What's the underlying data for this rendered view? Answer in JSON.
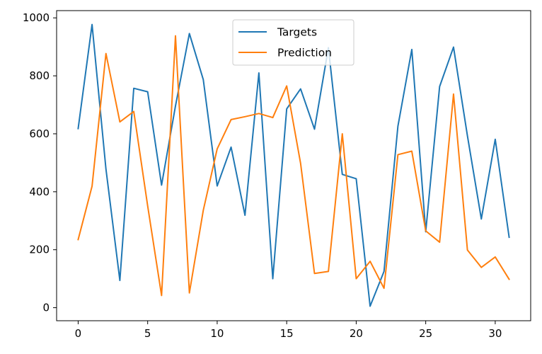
{
  "chart_data": {
    "type": "line",
    "title": "",
    "xlabel": "",
    "ylabel": "",
    "xlim": [
      -1.55,
      32.55
    ],
    "ylim": [
      -45,
      1025
    ],
    "x_ticks": [
      0,
      5,
      10,
      15,
      20,
      25,
      30
    ],
    "y_ticks": [
      0,
      200,
      400,
      600,
      800,
      1000
    ],
    "x_tick_labels": [
      "0",
      "5",
      "10",
      "15",
      "20",
      "25",
      "30"
    ],
    "y_tick_labels": [
      "0",
      "200",
      "400",
      "600",
      "800",
      "1000"
    ],
    "grid": false,
    "legend_position": "upper center",
    "x": [
      0,
      1,
      2,
      3,
      4,
      5,
      6,
      7,
      8,
      9,
      10,
      11,
      12,
      13,
      14,
      15,
      16,
      17,
      18,
      19,
      20,
      21,
      22,
      23,
      24,
      25,
      26,
      27,
      28,
      29,
      30,
      31
    ],
    "series": [
      {
        "name": "Targets",
        "color": "#1f77b4",
        "values": [
          618,
          977,
          478,
          94,
          757,
          745,
          423,
          696,
          946,
          787,
          420,
          554,
          319,
          810,
          100,
          686,
          755,
          616,
          897,
          460,
          445,
          5,
          125,
          626,
          891,
          262,
          763,
          899,
          593,
          306,
          581,
          243
        ]
      },
      {
        "name": "Prediction",
        "color": "#ff7f0e",
        "values": [
          235,
          419,
          877,
          641,
          677,
          351,
          42,
          938,
          51,
          336,
          548,
          649,
          659,
          670,
          656,
          765,
          498,
          118,
          125,
          600,
          100,
          160,
          67,
          528,
          540,
          265,
          226,
          737,
          199,
          139,
          175,
          98
        ]
      }
    ]
  }
}
